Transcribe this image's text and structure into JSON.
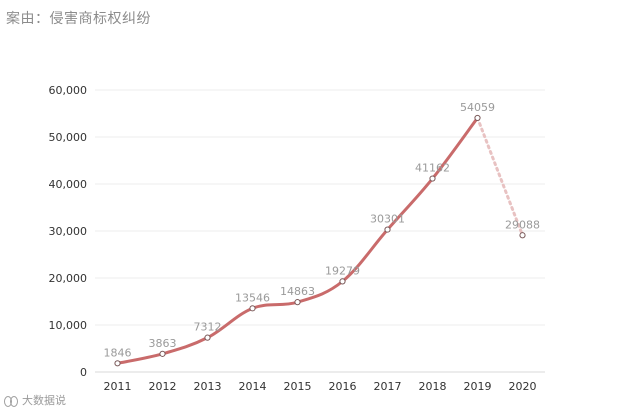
{
  "caption": "案由：侵害商标权纠纷",
  "watermark": "大数据说",
  "colors": {
    "line": "#c96b6b",
    "projection": "#e8c2c2",
    "marker_fill": "#ffffff",
    "marker_stroke": "#7a5a5a",
    "grid": "#ececec",
    "tick_text": "#333333",
    "label_text": "#9a9a9a"
  },
  "chart_data": {
    "type": "line",
    "title": "",
    "xlabel": "",
    "ylabel": "",
    "ylim": [
      0,
      60000
    ],
    "yticks": [
      0,
      10000,
      20000,
      30000,
      40000,
      50000,
      60000
    ],
    "ytick_labels": [
      "0",
      "10,000",
      "20,000",
      "30,000",
      "40,000",
      "50,000",
      "60,000"
    ],
    "categories": [
      "2011",
      "2012",
      "2013",
      "2014",
      "2015",
      "2016",
      "2017",
      "2018",
      "2019",
      "2020"
    ],
    "series": [
      {
        "values": [
          1846,
          3863,
          7312,
          13546,
          14863,
          19279,
          30301,
          41162,
          54059,
          null
        ],
        "labels": [
          "1846",
          "3863",
          "7312",
          "13546",
          "14863",
          "19279",
          "30301",
          "41162",
          "54059",
          ""
        ]
      },
      {
        "style": "dotted",
        "values": [
          null,
          null,
          null,
          null,
          null,
          null,
          null,
          null,
          54059,
          29088
        ],
        "labels": [
          "",
          "",
          "",
          "",
          "",
          "",
          "",
          "",
          "",
          "29088"
        ]
      }
    ],
    "grid": true,
    "legend": "none"
  }
}
